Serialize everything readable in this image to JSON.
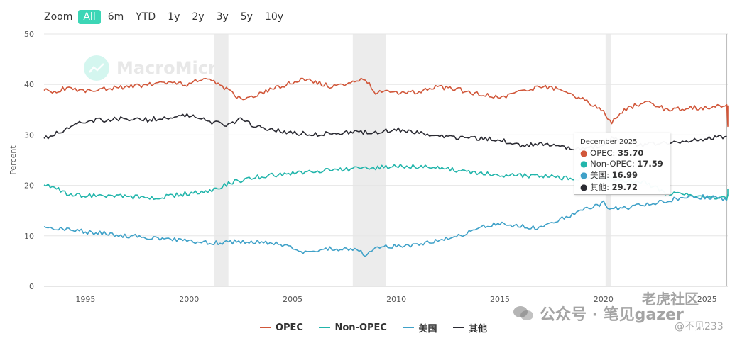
{
  "zoom": {
    "label": "Zoom",
    "buttons": [
      "All",
      "6m",
      "YTD",
      "1y",
      "2y",
      "3y",
      "5y",
      "10y"
    ],
    "active": "All"
  },
  "watermark": "MacroMicro",
  "tooltip": {
    "title": "December 2025",
    "rows": [
      {
        "label": "OPEC",
        "value": "35.70",
        "color": "#d1573a"
      },
      {
        "label": "Non-OPEC",
        "value": "17.59",
        "color": "#22b5ab"
      },
      {
        "label": "美国",
        "value": "16.99",
        "color": "#3fa1c8"
      },
      {
        "label": "其他",
        "value": "29.72",
        "color": "#2b2b33"
      }
    ]
  },
  "stamp": {
    "main": "公众号 · 笔见gazer",
    "site": "老虎社区",
    "handle": "@不见233"
  },
  "chart_data": {
    "type": "line",
    "xlabel": "",
    "ylabel": "Percent",
    "ylim": [
      0,
      50
    ],
    "yticks": [
      0,
      10,
      20,
      30,
      40,
      50
    ],
    "xticks": [
      "1995",
      "2000",
      "2005",
      "2010",
      "2015",
      "2020",
      "2025"
    ],
    "xrange": [
      1993.0,
      2026.0
    ],
    "grid": "horizontal",
    "legend_position": "bottom",
    "recession_bands": [
      [
        2001.2,
        2001.9
      ],
      [
        2007.9,
        2009.5
      ],
      [
        2020.1,
        2020.35
      ]
    ],
    "crosshair_x": 2025.95,
    "series": [
      {
        "name": "OPEC",
        "color": "#d1573a",
        "x": [
          1993.0,
          1993.5,
          1994.0,
          1995.0,
          1996.0,
          1997.0,
          1998.0,
          1999.0,
          2000.0,
          2000.5,
          2001.0,
          2001.5,
          2002.0,
          2002.5,
          2003.0,
          2004.0,
          2005.0,
          2005.5,
          2006.0,
          2007.0,
          2008.0,
          2008.5,
          2009.0,
          2010.0,
          2011.0,
          2012.0,
          2013.0,
          2014.0,
          2015.0,
          2016.0,
          2017.0,
          2018.0,
          2019.0,
          2019.8,
          2020.2,
          2020.4,
          2021.0,
          2022.0,
          2022.5,
          2023.0,
          2024.0,
          2025.0,
          2025.6,
          2025.95,
          2026.0,
          2026.5,
          2027.0
        ],
        "y": [
          39.0,
          38.5,
          39.2,
          38.8,
          39.2,
          39.5,
          40.0,
          40.5,
          40.0,
          41.0,
          40.8,
          40.0,
          38.5,
          37.0,
          37.5,
          39.0,
          40.5,
          41.0,
          40.5,
          39.5,
          40.5,
          41.0,
          38.5,
          38.5,
          38.5,
          39.5,
          39.0,
          38.0,
          37.5,
          38.5,
          39.5,
          39.0,
          37.0,
          35.5,
          33.5,
          32.5,
          35.0,
          36.5,
          36.0,
          35.0,
          35.3,
          35.5,
          36.0,
          35.7,
          31.5,
          35.5,
          35.0
        ]
      },
      {
        "name": "Non-OPEC",
        "color": "#22b5ab",
        "x": [
          1993.0,
          1993.5,
          1994.0,
          1995.0,
          1996.0,
          1997.0,
          1998.0,
          1999.0,
          2000.0,
          2001.0,
          2002.0,
          2003.0,
          2004.0,
          2005.0,
          2006.0,
          2007.0,
          2008.0,
          2009.0,
          2010.0,
          2011.0,
          2012.0,
          2013.0,
          2014.0,
          2015.0,
          2016.0,
          2017.0,
          2018.0,
          2019.0,
          2020.0,
          2020.3,
          2021.0,
          2022.0,
          2023.0,
          2024.0,
          2025.0,
          2025.95,
          2026.2,
          2027.0
        ],
        "y": [
          20.0,
          19.8,
          18.5,
          18.0,
          18.0,
          17.8,
          17.5,
          17.8,
          18.5,
          19.0,
          20.5,
          21.5,
          22.0,
          22.5,
          22.8,
          23.0,
          23.3,
          23.5,
          23.8,
          23.7,
          23.5,
          23.0,
          22.5,
          22.0,
          22.0,
          21.8,
          21.5,
          21.2,
          21.5,
          21.2,
          21.0,
          20.5,
          18.5,
          18.3,
          17.8,
          17.59,
          19.0,
          17.8
        ]
      },
      {
        "name": "美国",
        "color": "#3fa1c8",
        "x": [
          1993.0,
          1994.0,
          1995.0,
          1996.0,
          1997.0,
          1998.0,
          1999.0,
          2000.0,
          2001.0,
          2002.0,
          2003.0,
          2004.0,
          2005.0,
          2005.5,
          2006.0,
          2007.0,
          2008.0,
          2008.5,
          2009.0,
          2010.0,
          2011.0,
          2012.0,
          2013.0,
          2014.0,
          2015.0,
          2016.0,
          2017.0,
          2018.0,
          2019.0,
          2020.0,
          2020.3,
          2021.0,
          2022.0,
          2023.0,
          2024.0,
          2025.0,
          2025.95
        ],
        "y": [
          11.8,
          11.3,
          10.8,
          10.5,
          10.0,
          9.7,
          9.3,
          9.0,
          8.6,
          8.8,
          8.8,
          8.5,
          7.8,
          6.8,
          7.2,
          7.5,
          7.3,
          6.2,
          7.8,
          7.9,
          8.2,
          9.0,
          10.0,
          11.5,
          12.5,
          12.0,
          11.5,
          13.5,
          15.0,
          16.5,
          15.5,
          15.5,
          16.3,
          17.0,
          17.5,
          17.8,
          16.99
        ]
      },
      {
        "name": "其他",
        "color": "#2b2b33",
        "x": [
          1993.0,
          1994.0,
          1995.0,
          1996.0,
          1997.0,
          1998.0,
          1999.0,
          2000.0,
          2001.0,
          2002.0,
          2002.5,
          2003.0,
          2004.0,
          2005.0,
          2006.0,
          2007.0,
          2008.0,
          2009.0,
          2010.0,
          2011.0,
          2012.0,
          2013.0,
          2014.0,
          2015.0,
          2016.0,
          2017.0,
          2018.0,
          2019.0,
          2020.0,
          2020.4,
          2021.0,
          2022.0,
          2023.0,
          2024.0,
          2025.0,
          2025.95
        ],
        "y": [
          29.2,
          31.0,
          32.8,
          33.0,
          33.2,
          33.0,
          33.5,
          34.0,
          32.5,
          32.0,
          33.5,
          32.0,
          31.0,
          30.5,
          30.0,
          30.5,
          30.5,
          30.5,
          31.0,
          30.5,
          29.8,
          29.5,
          29.3,
          29.0,
          28.0,
          28.2,
          27.5,
          27.2,
          28.0,
          29.5,
          28.5,
          28.0,
          28.5,
          28.8,
          29.2,
          29.72
        ]
      }
    ]
  }
}
